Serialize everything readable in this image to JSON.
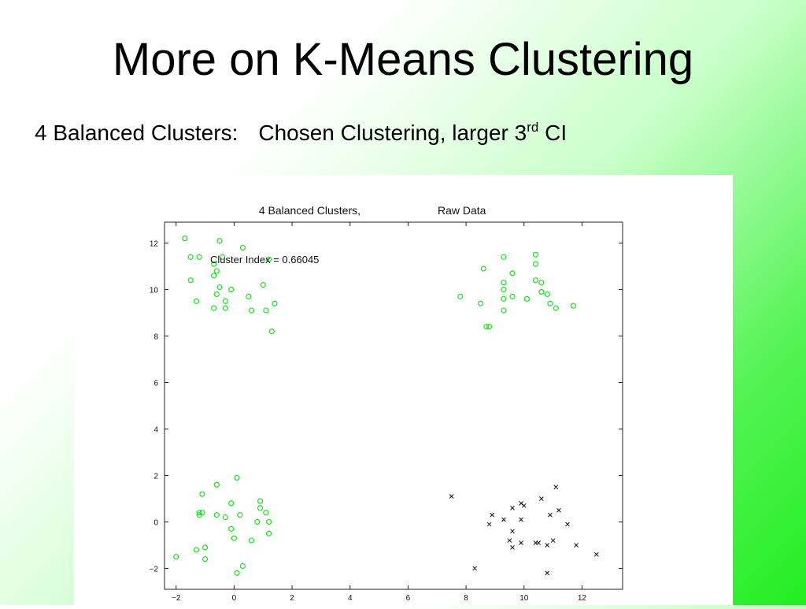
{
  "slide": {
    "title": "More on K-Means Clustering",
    "subtitle_left": "4 Balanced Clusters:",
    "subtitle_right_main": "Chosen Clustering, larger 3",
    "subtitle_right_sup": "rd",
    "subtitle_right_end": " CI"
  },
  "colors": {
    "cluster_green": "#22dd22",
    "cluster_black": "#111111",
    "axis": "#222222"
  },
  "chart_data": {
    "type": "scatter",
    "title_left": "4 Balanced Clusters,",
    "title_right": "Raw Data",
    "annotation": "Cluster Index = 0.66045",
    "xlim": [
      -2.4,
      13.4
    ],
    "ylim": [
      -2.9,
      12.9
    ],
    "xticks": [
      -2,
      0,
      2,
      4,
      6,
      8,
      10,
      12
    ],
    "yticks": [
      -2,
      0,
      2,
      4,
      6,
      8,
      10,
      12
    ],
    "series": [
      {
        "marker": "circle",
        "color": "#22dd22",
        "points": [
          [
            -1.7,
            12.2
          ],
          [
            -0.5,
            12.1
          ],
          [
            0.3,
            11.8
          ],
          [
            -1.5,
            11.4
          ],
          [
            -1.2,
            11.4
          ],
          [
            -0.4,
            11.4
          ],
          [
            1.2,
            11.3
          ],
          [
            -0.7,
            11.1
          ],
          [
            -0.6,
            10.8
          ],
          [
            -0.7,
            10.6
          ],
          [
            -1.5,
            10.4
          ],
          [
            -0.5,
            10.1
          ],
          [
            1.0,
            10.2
          ],
          [
            -0.1,
            10.0
          ],
          [
            -0.6,
            9.8
          ],
          [
            0.5,
            9.7
          ],
          [
            -0.3,
            9.5
          ],
          [
            -1.3,
            9.5
          ],
          [
            1.4,
            9.4
          ],
          [
            -0.7,
            9.2
          ],
          [
            -0.3,
            9.2
          ],
          [
            0.6,
            9.1
          ],
          [
            1.1,
            9.1
          ],
          [
            1.3,
            8.2
          ],
          [
            10.4,
            11.5
          ],
          [
            9.3,
            11.4
          ],
          [
            10.4,
            11.1
          ],
          [
            8.6,
            10.9
          ],
          [
            9.6,
            10.7
          ],
          [
            10.4,
            10.4
          ],
          [
            9.3,
            10.3
          ],
          [
            10.6,
            10.3
          ],
          [
            9.3,
            10.0
          ],
          [
            10.6,
            9.9
          ],
          [
            10.8,
            9.8
          ],
          [
            7.8,
            9.7
          ],
          [
            9.6,
            9.7
          ],
          [
            9.3,
            9.6
          ],
          [
            10.1,
            9.6
          ],
          [
            8.5,
            9.4
          ],
          [
            10.9,
            9.4
          ],
          [
            11.7,
            9.3
          ],
          [
            11.1,
            9.2
          ],
          [
            9.3,
            9.1
          ],
          [
            8.8,
            8.4
          ],
          [
            8.7,
            8.4
          ],
          [
            0.1,
            1.9
          ],
          [
            -0.6,
            1.6
          ],
          [
            -1.1,
            1.2
          ],
          [
            0.9,
            0.9
          ],
          [
            -0.1,
            0.8
          ],
          [
            0.9,
            0.6
          ],
          [
            -1.2,
            0.4
          ],
          [
            -1.1,
            0.4
          ],
          [
            -1.2,
            0.3
          ],
          [
            0.2,
            0.3
          ],
          [
            1.1,
            0.4
          ],
          [
            -0.6,
            0.3
          ],
          [
            -0.3,
            0.2
          ],
          [
            1.2,
            0.0
          ],
          [
            0.8,
            0.0
          ],
          [
            -0.1,
            -0.3
          ],
          [
            1.2,
            -0.5
          ],
          [
            0.0,
            -0.7
          ],
          [
            0.6,
            -0.8
          ],
          [
            -1.0,
            -1.1
          ],
          [
            -1.3,
            -1.2
          ],
          [
            -2.0,
            -1.5
          ],
          [
            -1.0,
            -1.6
          ],
          [
            0.3,
            -1.9
          ],
          [
            0.1,
            -2.2
          ]
        ]
      },
      {
        "marker": "x",
        "color": "#111111",
        "points": [
          [
            7.5,
            1.1
          ],
          [
            11.1,
            1.5
          ],
          [
            10.6,
            1.0
          ],
          [
            10.0,
            0.7
          ],
          [
            9.9,
            0.8
          ],
          [
            9.6,
            0.6
          ],
          [
            11.2,
            0.5
          ],
          [
            8.9,
            0.3
          ],
          [
            10.9,
            0.3
          ],
          [
            9.9,
            0.1
          ],
          [
            9.3,
            0.1
          ],
          [
            8.8,
            -0.1
          ],
          [
            11.5,
            -0.1
          ],
          [
            9.6,
            -0.4
          ],
          [
            9.5,
            -0.8
          ],
          [
            11.0,
            -0.8
          ],
          [
            9.9,
            -0.9
          ],
          [
            10.4,
            -0.9
          ],
          [
            10.5,
            -0.9
          ],
          [
            10.8,
            -1.0
          ],
          [
            9.6,
            -1.1
          ],
          [
            11.8,
            -1.0
          ],
          [
            12.5,
            -1.4
          ],
          [
            8.3,
            -2.0
          ],
          [
            10.8,
            -2.2
          ]
        ]
      }
    ]
  }
}
